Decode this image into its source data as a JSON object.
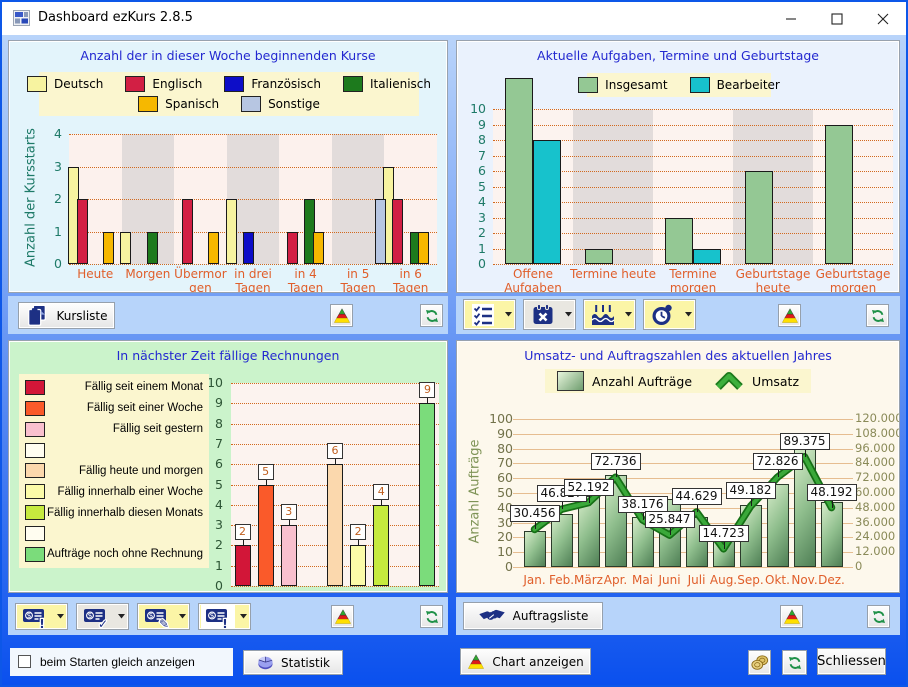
{
  "window": {
    "title": "Dashboard ezKurs 2.8.5"
  },
  "buttons": {
    "kursliste": "Kursliste",
    "auftragsliste": "Auftragsliste",
    "statistik": "Statistik",
    "chart_anzeigen": "Chart anzeigen",
    "schliessen": "Schliessen"
  },
  "footer": {
    "autostart_label": "beim Starten gleich anzeigen",
    "autostart_checked": false
  },
  "colors": {
    "accent_blue": "#0d57e8",
    "panel_blue": "#b7d4fa",
    "title_text": "#2328d0",
    "grid_orange": "#d2691e",
    "axis_teal": "#1e7a68",
    "xlabel_orange": "#e05e2a"
  },
  "chart_data": [
    {
      "type": "bar",
      "title": "Anzahl der in dieser Woche beginnenden Kurse",
      "categories": [
        "Heute",
        "Morgen",
        "Übermorgen",
        "in drei Tagen",
        "in 4 Tagen",
        "in 5 Tagen",
        "in 6 Tagen"
      ],
      "series": [
        {
          "name": "Deutsch",
          "color": "#f7f3a0",
          "values": [
            3,
            1,
            0,
            2,
            0,
            0,
            3
          ]
        },
        {
          "name": "Englisch",
          "color": "#d21f44",
          "values": [
            2,
            0,
            2,
            0,
            1,
            0,
            2
          ]
        },
        {
          "name": "Französisch",
          "color": "#0d0dc8",
          "values": [
            0,
            0,
            0,
            1,
            0,
            0,
            0
          ]
        },
        {
          "name": "Italienisch",
          "color": "#1d7a1d",
          "values": [
            0,
            1,
            0,
            0,
            2,
            0,
            1
          ]
        },
        {
          "name": "Spanisch",
          "color": "#f6b800",
          "values": [
            1,
            0,
            1,
            0,
            1,
            0,
            1
          ]
        },
        {
          "name": "Sonstige",
          "color": "#b7c6e2",
          "values": [
            0,
            0,
            0,
            0,
            0,
            2,
            0
          ]
        }
      ],
      "ylabel": "Anzahl der Kursstarts",
      "ylim": [
        0,
        4
      ]
    },
    {
      "type": "bar",
      "title": "Aktuelle Aufgaben, Termine und Geburtstage",
      "categories": [
        "Offene Aufgaben",
        "Termine heute",
        "Termine morgen",
        "Geburtstage heute",
        "Geburtstage morgen"
      ],
      "series": [
        {
          "name": "Insgesamt",
          "color": "#94c894",
          "values": [
            12,
            1,
            3,
            6,
            9
          ]
        },
        {
          "name": "Bearbeiter",
          "color": "#17c2cc",
          "values": [
            8,
            0,
            1,
            0,
            0
          ]
        }
      ],
      "ylim": [
        0,
        10
      ]
    },
    {
      "type": "bar",
      "title": "In nächster Zeit fällige Rechnungen",
      "categories": [
        "Fällig seit einem Monat",
        "Fällig seit einer Woche",
        "Fällig seit gestern",
        "",
        "Fällig heute und morgen",
        "Fällig innerhalb einer Woche",
        "Fällig innerhalb diesen Monats",
        "",
        "Aufträge noch ohne Rechnung"
      ],
      "values": [
        2,
        5,
        3,
        0,
        6,
        2,
        4,
        0,
        9
      ],
      "colors": [
        "#d21638",
        "#fa5a2a",
        "#f9c0ce",
        "#fffdf0",
        "#fbd8ad",
        "#fbfba8",
        "#c6ea3e",
        "#fffdf0",
        "#7bdc7b"
      ],
      "ylim": [
        0,
        10
      ]
    },
    {
      "type": "bar+line",
      "title": "Umsatz- und Auftragszahlen des aktuellen Jahres",
      "categories": [
        "Jan.",
        "Feb.",
        "März",
        "Apr.",
        "Mai",
        "Juni",
        "Juli",
        "Aug.",
        "Sep.",
        "Okt.",
        "Nov.",
        "Dez."
      ],
      "bar_series": {
        "name": "Anzahl Aufträge",
        "values": [
          24,
          36,
          48,
          62,
          34,
          46,
          34,
          18,
          42,
          56,
          80,
          44
        ]
      },
      "line_series": {
        "name": "Umsatz",
        "values": [
          30456,
          46827,
          52192,
          72736,
          38176,
          25847,
          44629,
          14723,
          49182,
          72826,
          89375,
          48192
        ],
        "labels": [
          "30.456",
          "46.827",
          "52.192",
          "72.736",
          "38.176",
          "25.847",
          "44.629",
          "14.723",
          "49.182",
          "72.826",
          "89.375",
          "48.192"
        ]
      },
      "ylabel_left": "Anzahl Aufträge",
      "ylim_left": [
        0,
        100
      ],
      "ylim_right": [
        0,
        120000
      ]
    }
  ]
}
